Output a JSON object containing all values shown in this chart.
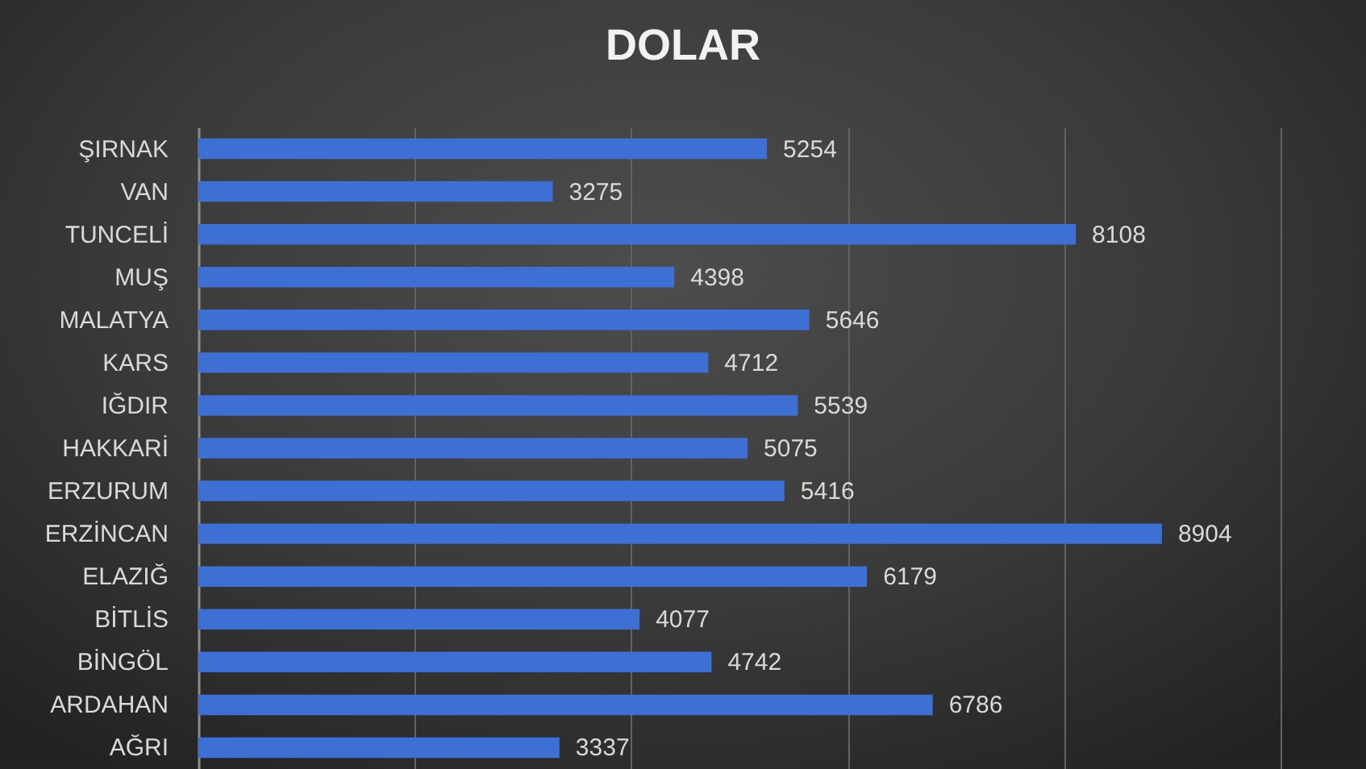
{
  "chart_data": {
    "type": "bar",
    "orientation": "horizontal",
    "title": "DOLAR",
    "categories": [
      "ŞIRNAK",
      "VAN",
      "TUNCELİ",
      "MUŞ",
      "MALATYA",
      "KARS",
      "IĞDIR",
      "HAKKARİ",
      "ERZURUM",
      "ERZİNCAN",
      "ELAZIĞ",
      "BİTLİS",
      "BİNGÖL",
      "ARDAHAN",
      "AĞRI"
    ],
    "values": [
      5254,
      3275,
      8108,
      4398,
      5646,
      4712,
      5539,
      5075,
      5416,
      8904,
      6179,
      4077,
      4742,
      6786,
      3337
    ],
    "color": "#3d6fd4",
    "xlim": [
      0,
      10000
    ],
    "xticks": [
      {
        "value": 0,
        "label": null
      },
      {
        "value": 2000,
        "label": null
      },
      {
        "value": 4000,
        "label": null
      },
      {
        "value": 6000,
        "label": null
      },
      {
        "value": 8000,
        "label": null
      },
      {
        "value": 10000,
        "label": null
      }
    ],
    "grid": "x",
    "tick_labels": "y",
    "data_labels": true
  }
}
